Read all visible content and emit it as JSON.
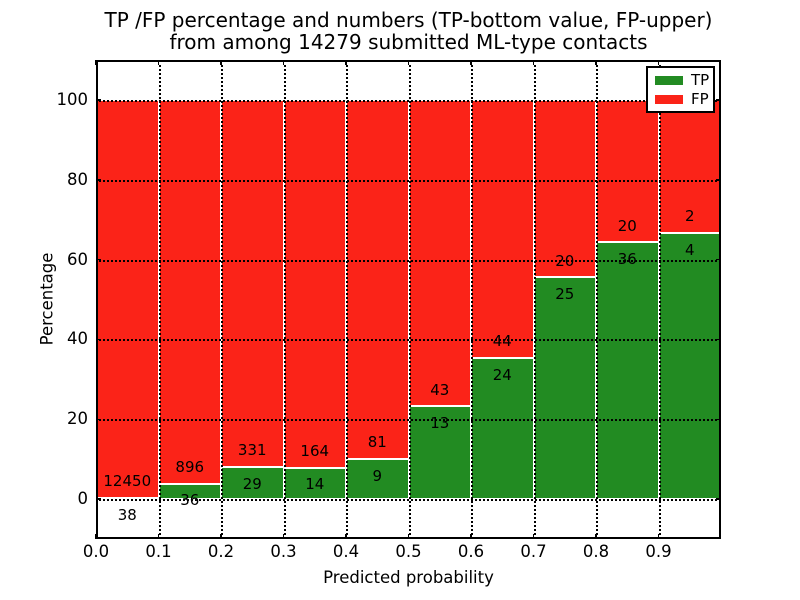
{
  "chart_data": {
    "type": "bar",
    "stacked": true,
    "title_lines": [
      "TP /FP percentage and numbers (TP-bottom value, FP-upper)",
      "from among 14279 submitted ML-type contacts"
    ],
    "xlabel": "Predicted probability",
    "ylabel": "Percentage",
    "xlim": [
      0.0,
      1.0
    ],
    "ylim": [
      -10,
      110
    ],
    "xtick_labels": [
      "0.0",
      "0.1",
      "0.2",
      "0.3",
      "0.4",
      "0.5",
      "0.6",
      "0.7",
      "0.8",
      "0.9"
    ],
    "yticks": [
      0,
      20,
      40,
      60,
      80,
      100
    ],
    "grid": true,
    "grid_style": "dotted",
    "total_submitted": 14279,
    "colors": {
      "tp": "#228b22",
      "fp": "#fb2318",
      "grid": "#000000",
      "text": "#000000",
      "bar_edge": "#ffffff"
    },
    "legend": {
      "position": "upper right",
      "entries": [
        {
          "label": "TP",
          "color_key": "tp"
        },
        {
          "label": "FP",
          "color_key": "fp"
        }
      ]
    },
    "bins": [
      {
        "range": [
          0.0,
          0.1
        ],
        "tp": 38,
        "fp": 12450,
        "tp_pct": 0.3
      },
      {
        "range": [
          0.1,
          0.2
        ],
        "tp": 36,
        "fp": 896,
        "tp_pct": 3.9
      },
      {
        "range": [
          0.2,
          0.3
        ],
        "tp": 29,
        "fp": 331,
        "tp_pct": 8.1
      },
      {
        "range": [
          0.3,
          0.4
        ],
        "tp": 14,
        "fp": 164,
        "tp_pct": 7.9
      },
      {
        "range": [
          0.4,
          0.5
        ],
        "tp": 9,
        "fp": 81,
        "tp_pct": 10.0
      },
      {
        "range": [
          0.5,
          0.6
        ],
        "tp": 13,
        "fp": 43,
        "tp_pct": 23.2
      },
      {
        "range": [
          0.6,
          0.7
        ],
        "tp": 24,
        "fp": 44,
        "tp_pct": 35.3
      },
      {
        "range": [
          0.7,
          0.8
        ],
        "tp": 25,
        "fp": 20,
        "tp_pct": 55.6
      },
      {
        "range": [
          0.8,
          0.9
        ],
        "tp": 36,
        "fp": 20,
        "tp_pct": 64.3
      },
      {
        "range": [
          0.9,
          1.0
        ],
        "tp": 4,
        "fp": 2,
        "tp_pct": 66.7
      }
    ]
  }
}
